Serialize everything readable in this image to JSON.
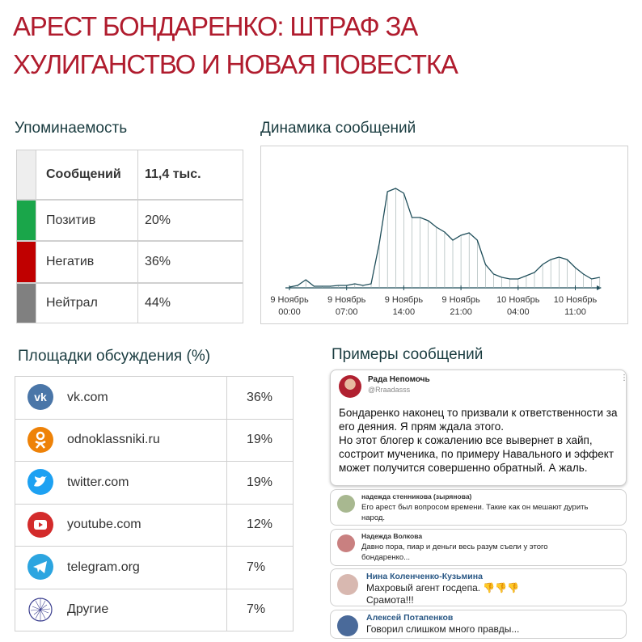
{
  "header": {
    "title_lines": [
      "АРЕСТ БОНДАРЕНКО: ШТРАФ ЗА",
      "ХУЛИГАНСТВО И НОВАЯ ПОВЕСТКА"
    ]
  },
  "mentions": {
    "title": "Упоминаемость",
    "rows": [
      {
        "label": "Сообщений",
        "value": "11,4 тыс.",
        "color": "#eeeeee"
      },
      {
        "label": "Позитив",
        "value": "20%",
        "color": "#1aa64a"
      },
      {
        "label": "Негатив",
        "value": "36%",
        "color": "#c00000"
      },
      {
        "label": "Нейтрал",
        "value": "44%",
        "color": "#808080"
      }
    ]
  },
  "chart_data": {
    "type": "line",
    "title": "Динамика сообщений",
    "color": "#1f4e5a",
    "drop_lines": true,
    "categories": [
      "9 Ноябрь 00:00",
      null,
      null,
      null,
      null,
      null,
      null,
      "9 Ноябрь 07:00",
      null,
      null,
      null,
      null,
      null,
      null,
      "9 Ноябрь 14:00",
      null,
      null,
      null,
      null,
      null,
      null,
      "9 Ноябрь 21:00",
      null,
      null,
      null,
      null,
      null,
      null,
      "10 Ноябрь 04:00",
      null,
      null,
      null,
      null,
      null,
      null,
      "10 Ноябрь 11:00",
      null,
      null,
      null
    ],
    "values": [
      1,
      3,
      10,
      2,
      2,
      2,
      3,
      3,
      5,
      3,
      5,
      55,
      119,
      123,
      117,
      87,
      87,
      83,
      75,
      69,
      59,
      65,
      68,
      59,
      29,
      17,
      13,
      11,
      11,
      15,
      19,
      29,
      35,
      38,
      35,
      25,
      17,
      11,
      13
    ],
    "ylim": [
      0,
      130
    ]
  },
  "platforms": {
    "title": "Площадки обсуждения (%)",
    "rows": [
      {
        "name": "vk.com",
        "value": "36%",
        "icon": "vk",
        "color": "#4a76a8"
      },
      {
        "name": "odnoklassniki.ru",
        "value": "19%",
        "icon": "ok",
        "color": "#ee8208"
      },
      {
        "name": "twitter.com",
        "value": "19%",
        "icon": "tw",
        "color": "#1da1f2"
      },
      {
        "name": "youtube.com",
        "value": "12%",
        "icon": "yt",
        "color": "#d32b2b"
      },
      {
        "name": "telegram.org",
        "value": "7%",
        "icon": "tg",
        "color": "#2ca5e0"
      },
      {
        "name": "Другие",
        "value": "7%",
        "icon": "other",
        "color": "#3b3f8f"
      }
    ]
  },
  "examples": {
    "title": "Примеры сообщений",
    "post": {
      "author": "Рада Непомочь",
      "handle": "@Rraadasss",
      "text": "Бондаренко наконец то призвали к ответственности за его деяния. Я прям ждала этого.\nНо этот блогер к сожалению все вывернет в хайп, состроит мученика, по примеру Навального и эффект может получится совершенно обратный. А жаль."
    },
    "comments": [
      {
        "author": "надежда стенникова (зырянова)",
        "text": "Его арест был вопросом времени. Такие как он мешают дурить народ."
      },
      {
        "author": "Надежда Волкова",
        "text": "Давно пора, пиар и деньги весь разум съели у этого бондаренко..."
      },
      {
        "author": "Нина Коленченко-Кузьмина",
        "text": "Махровый агент госдепа. 👎👎👎\nСрамота!!!"
      },
      {
        "author": "Алексей Потапенков",
        "text": "Говорил слишком много правды..."
      }
    ]
  }
}
